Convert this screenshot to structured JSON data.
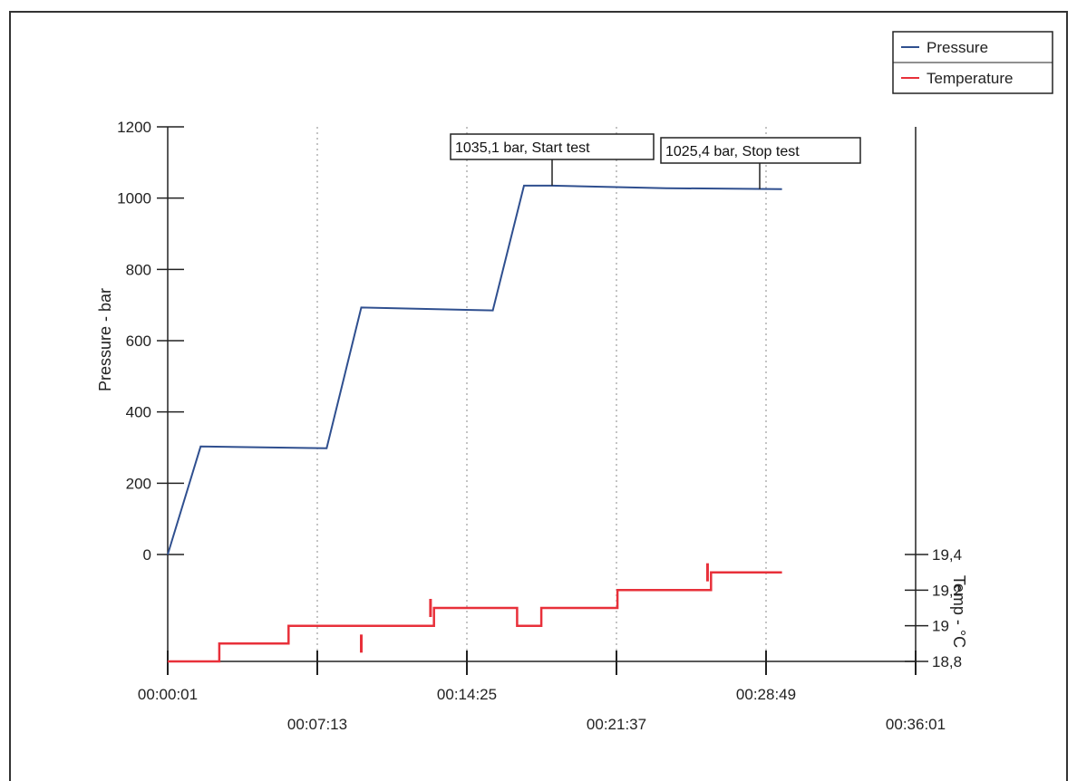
{
  "chart_data": {
    "type": "line",
    "legend": {
      "placement": "top-right",
      "entries": [
        {
          "name": "Pressure",
          "color": "#2f4f8f"
        },
        {
          "name": "Temperature",
          "color": "#e8303a"
        }
      ]
    },
    "x_axis": {
      "range": [
        "00:00:01",
        "00:36:01"
      ],
      "ticks_upper": [
        "00:00:01",
        "00:14:25",
        "00:28:49"
      ],
      "ticks_lower": [
        "00:07:13",
        "00:21:37",
        "00:36:01"
      ]
    },
    "y_left": {
      "label": "Pressure - bar",
      "range": [
        0,
        1200
      ],
      "ticks": [
        "0",
        "200",
        "400",
        "600",
        "800",
        "1000",
        "1200"
      ]
    },
    "y_right": {
      "label": "Temp - °C",
      "range": [
        18.8,
        19.4
      ],
      "ticks": [
        "18,8",
        "19",
        "19,2",
        "19,4"
      ]
    },
    "annotations": [
      {
        "text": "1035,1  bar, Start test",
        "x": "00:18:30",
        "y": 1035.1
      },
      {
        "text": "1025,4  bar, Stop test",
        "x": "00:28:40",
        "y": 1025.4
      }
    ],
    "series": [
      {
        "name": "Pressure",
        "color": "#2f4f8f",
        "points": [
          [
            "00:00:01",
            0
          ],
          [
            "00:01:36",
            303
          ],
          [
            "00:07:40",
            298
          ],
          [
            "00:09:20",
            693
          ],
          [
            "00:15:40",
            685
          ],
          [
            "00:17:10",
            1035
          ],
          [
            "00:18:30",
            1035
          ],
          [
            "00:24:00",
            1028
          ],
          [
            "00:29:35",
            1025
          ]
        ]
      },
      {
        "name": "Temperature",
        "color": "#e8303a",
        "points": [
          [
            "00:00:01",
            18.8
          ],
          [
            "00:02:30",
            18.8
          ],
          [
            "00:02:30",
            18.9
          ],
          [
            "00:05:50",
            18.9
          ],
          [
            "00:05:50",
            19.0
          ],
          [
            "00:12:50",
            19.0
          ],
          [
            "00:12:50",
            19.1
          ],
          [
            "00:16:50",
            19.1
          ],
          [
            "00:16:50",
            19.0
          ],
          [
            "00:18:00",
            19.0
          ],
          [
            "00:18:00",
            19.1
          ],
          [
            "00:21:40",
            19.1
          ],
          [
            "00:21:40",
            19.2
          ],
          [
            "00:26:10",
            19.2
          ],
          [
            "00:26:10",
            19.3
          ],
          [
            "00:29:35",
            19.3
          ]
        ],
        "spikes": [
          [
            "00:09:20",
            18.9
          ],
          [
            "00:12:40",
            19.1
          ],
          [
            "00:26:00",
            19.3
          ]
        ]
      }
    ]
  }
}
